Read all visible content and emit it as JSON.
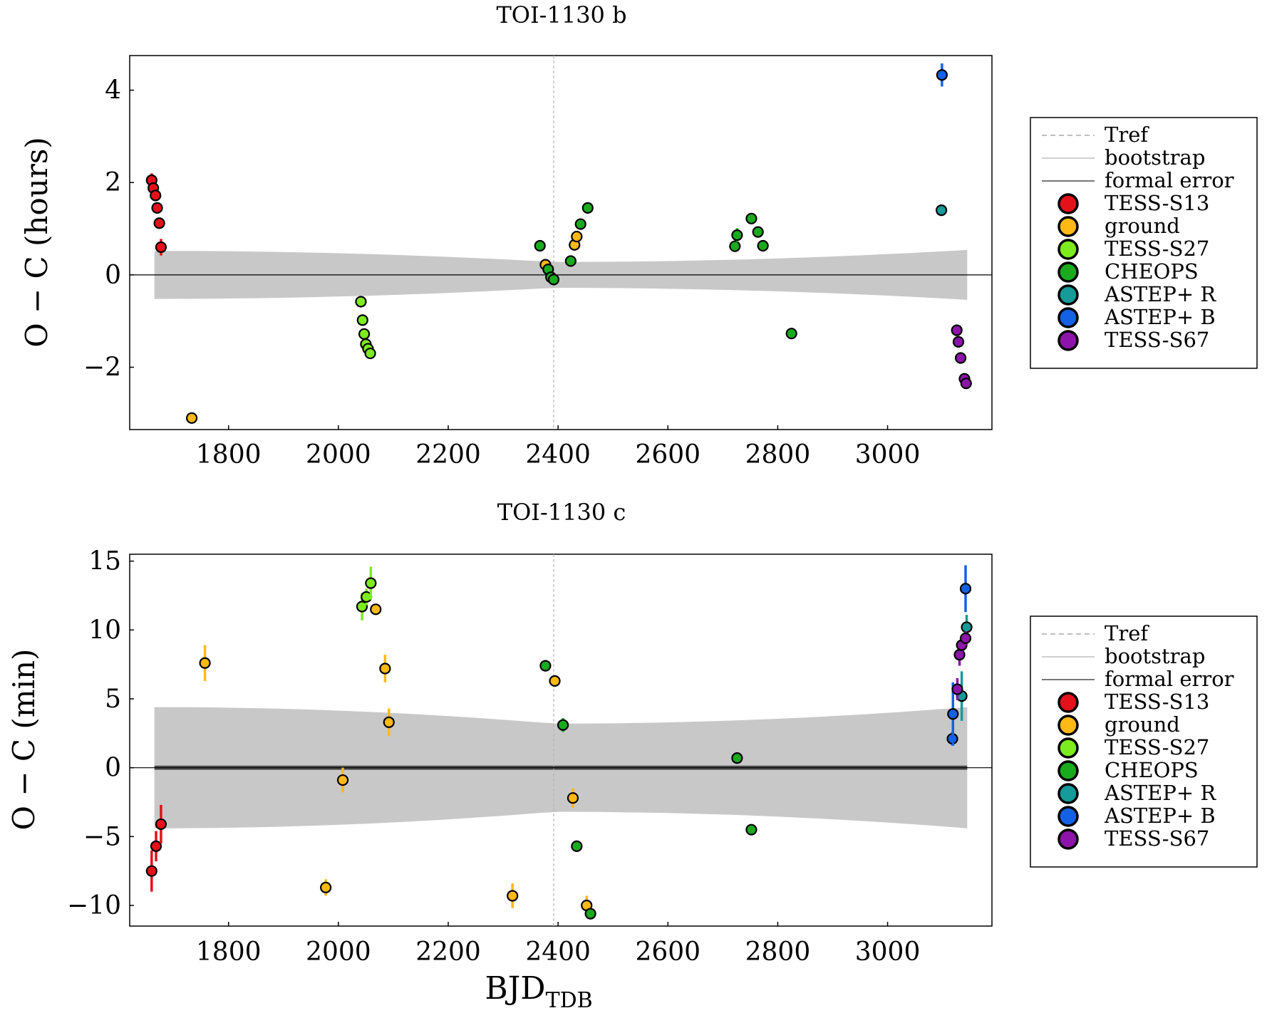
{
  "figure_xlabel_main": "BJD",
  "figure_xlabel_sub": "TDB",
  "colors": {
    "TESS-S13": "#e4101a",
    "ground": "#ffb914",
    "TESS-S27": "#7eeb1e",
    "CHEOPS": "#1aaa1e",
    "ASTEP+ R": "#169a9a",
    "ASTEP+ B": "#1461e4",
    "TESS-S67": "#8c14a8",
    "band": "#c8c8c8",
    "tref": "#b4b4b4",
    "formal": "#4a4a4a"
  },
  "legend_entries": [
    {
      "label": "Tref",
      "kind": "dash"
    },
    {
      "label": "bootstrap",
      "kind": "light-line"
    },
    {
      "label": "formal error",
      "kind": "dark-line"
    },
    {
      "label": "TESS-S13",
      "kind": "marker"
    },
    {
      "label": "ground",
      "kind": "marker"
    },
    {
      "label": "TESS-S27",
      "kind": "marker"
    },
    {
      "label": "CHEOPS",
      "kind": "marker"
    },
    {
      "label": "ASTEP+ R",
      "kind": "marker"
    },
    {
      "label": "ASTEP+ B",
      "kind": "marker"
    },
    {
      "label": "TESS-S67",
      "kind": "marker"
    }
  ],
  "chart_data": [
    {
      "type": "scatter",
      "title": "TOI-1130 b",
      "xlabel": "",
      "ylabel": "O − C (hours)",
      "xlim": [
        1620,
        3190
      ],
      "ylim": [
        -3.35,
        4.75
      ],
      "xticks": [
        1800,
        2000,
        2200,
        2400,
        2600,
        2800,
        3000
      ],
      "yticks": [
        -2,
        0,
        2,
        4
      ],
      "ytick_labels": [
        "−2",
        "0",
        "2",
        "4"
      ],
      "tref": 2392,
      "bootstrap_band": {
        "x": [
          1665,
          2392,
          3145
        ],
        "halfwidth": [
          0.52,
          0.28,
          0.54
        ]
      },
      "series": [
        {
          "name": "TESS-S13",
          "points": [
            [
              1660,
              2.05,
              0.15
            ],
            [
              1663,
              1.88,
              0.12
            ],
            [
              1667,
              1.72,
              0.12
            ],
            [
              1670,
              1.45,
              0.1
            ],
            [
              1674,
              1.12,
              0.1
            ],
            [
              1677,
              0.6,
              0.18
            ]
          ]
        },
        {
          "name": "ground",
          "points": [
            [
              1733,
              -3.1,
              0.05
            ],
            [
              2377,
              0.22,
              0.05
            ],
            [
              2430,
              0.65,
              0.05
            ],
            [
              2434,
              0.83,
              0.05
            ]
          ]
        },
        {
          "name": "TESS-S27",
          "points": [
            [
              2041,
              -0.58,
              0.05
            ],
            [
              2044,
              -0.98,
              0.05
            ],
            [
              2047,
              -1.28,
              0.05
            ],
            [
              2050,
              -1.5,
              0.05
            ],
            [
              2054,
              -1.6,
              0.05
            ],
            [
              2058,
              -1.7,
              0.05
            ]
          ]
        },
        {
          "name": "CHEOPS",
          "points": [
            [
              2367,
              0.63,
              0.05
            ],
            [
              2382,
              0.12,
              0.05
            ],
            [
              2387,
              -0.05,
              0.05
            ],
            [
              2392,
              -0.1,
              0.05
            ],
            [
              2423,
              0.3,
              0.05
            ],
            [
              2441,
              1.1,
              0.05
            ],
            [
              2454,
              1.45,
              0.05
            ],
            [
              2722,
              0.62,
              0.05
            ],
            [
              2726,
              0.86,
              0.15
            ],
            [
              2752,
              1.22,
              0.05
            ],
            [
              2764,
              0.93,
              0.05
            ],
            [
              2773,
              0.63,
              0.05
            ],
            [
              2825,
              -1.27,
              0.05
            ]
          ]
        },
        {
          "name": "ASTEP+ R",
          "points": [
            [
              3098,
              1.4,
              0.05
            ]
          ]
        },
        {
          "name": "ASTEP+ B",
          "points": [
            [
              3099,
              4.33,
              0.25
            ]
          ]
        },
        {
          "name": "TESS-S67",
          "points": [
            [
              3126,
              -1.2,
              0.05
            ],
            [
              3129,
              -1.45,
              0.05
            ],
            [
              3133,
              -1.8,
              0.05
            ],
            [
              3140,
              -2.25,
              0.05
            ],
            [
              3143,
              -2.35,
              0.05
            ]
          ]
        }
      ]
    },
    {
      "type": "scatter",
      "title": "TOI-1130 c",
      "xlabel": "BJD_TDB",
      "ylabel": "O − C (min)",
      "xlim": [
        1620,
        3190
      ],
      "ylim": [
        -11.5,
        15.5
      ],
      "xticks": [
        1800,
        2000,
        2200,
        2400,
        2600,
        2800,
        3000
      ],
      "yticks": [
        -10,
        -5,
        0,
        5,
        10,
        15
      ],
      "ytick_labels": [
        "−10",
        "−5",
        "0",
        "5",
        "10",
        "15"
      ],
      "tref": 2392,
      "bootstrap_band": {
        "x": [
          1665,
          2392,
          3145
        ],
        "halfwidth": [
          4.4,
          3.2,
          4.4
        ]
      },
      "formal_band_halfwidth": 0.15,
      "series": [
        {
          "name": "TESS-S13",
          "points": [
            [
              1660,
              -7.5,
              1.5
            ],
            [
              1668,
              -5.7,
              1.1
            ],
            [
              1677,
              -4.1,
              1.4
            ]
          ]
        },
        {
          "name": "ground",
          "points": [
            [
              1757,
              7.6,
              1.3
            ],
            [
              1977,
              -8.7,
              0.6
            ],
            [
              2008,
              -0.9,
              0.9
            ],
            [
              2068,
              11.5,
              0.3
            ],
            [
              2085,
              7.2,
              1.0
            ],
            [
              2092,
              3.3,
              1.0
            ],
            [
              2317,
              -9.3,
              0.9
            ],
            [
              2394,
              6.3,
              0.3
            ],
            [
              2427,
              -2.2,
              0.7
            ],
            [
              2452,
              -10.0,
              0.7
            ]
          ]
        },
        {
          "name": "TESS-S27",
          "points": [
            [
              2043,
              11.7,
              1.0
            ],
            [
              2051,
              12.4,
              0.6
            ],
            [
              2059,
              13.4,
              1.2
            ]
          ]
        },
        {
          "name": "CHEOPS",
          "points": [
            [
              2377,
              7.4,
              0.3
            ],
            [
              2409,
              3.1,
              0.5
            ],
            [
              2434,
              -5.7,
              0.3
            ],
            [
              2459,
              -10.6,
              0.3
            ],
            [
              2726,
              0.7,
              0.3
            ],
            [
              2752,
              -4.5,
              0.3
            ]
          ]
        },
        {
          "name": "ASTEP+ R",
          "points": [
            [
              3135,
              5.2,
              1.8
            ],
            [
              3144,
              10.2,
              0.9
            ]
          ]
        },
        {
          "name": "ASTEP+ B",
          "points": [
            [
              3118,
              2.1,
              0.5
            ],
            [
              3119,
              3.9,
              2.3
            ],
            [
              3142,
              13.0,
              1.7
            ]
          ]
        },
        {
          "name": "TESS-S67",
          "points": [
            [
              3127,
              5.7,
              0.8
            ],
            [
              3131,
              8.2,
              0.8
            ],
            [
              3135,
              8.9,
              0.7
            ],
            [
              3142,
              9.4,
              0.5
            ]
          ]
        }
      ]
    }
  ]
}
